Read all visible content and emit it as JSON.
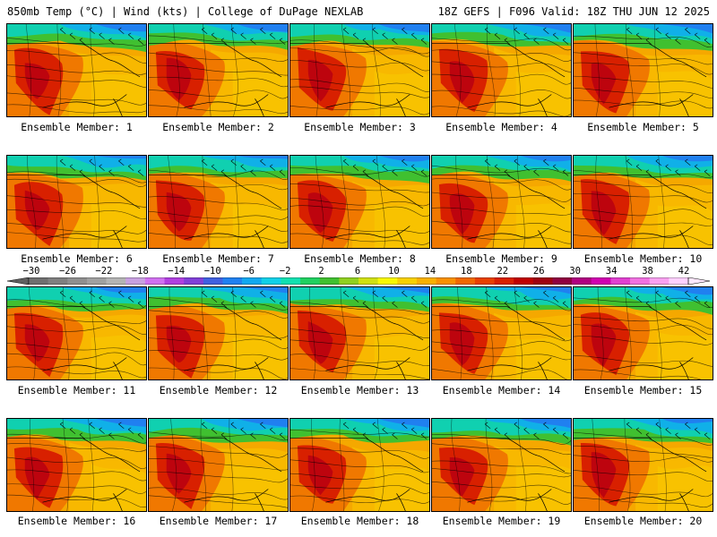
{
  "header": {
    "left": "850mb Temp (°C) | Wind (kts) | College of DuPage NEXLAB",
    "right": "18Z GEFS | F096 Valid: 18Z THU JUN 12 2025"
  },
  "panels": [
    {
      "caption": "Ensemble Member: 1"
    },
    {
      "caption": "Ensemble Member: 2"
    },
    {
      "caption": "Ensemble Member: 3"
    },
    {
      "caption": "Ensemble Member: 4"
    },
    {
      "caption": "Ensemble Member: 5"
    },
    {
      "caption": "Ensemble Member: 6"
    },
    {
      "caption": "Ensemble Member: 7"
    },
    {
      "caption": "Ensemble Member: 8"
    },
    {
      "caption": "Ensemble Member: 9"
    },
    {
      "caption": "Ensemble Member: 10"
    },
    {
      "caption": "Ensemble Member: 11"
    },
    {
      "caption": "Ensemble Member: 12"
    },
    {
      "caption": "Ensemble Member: 13"
    },
    {
      "caption": "Ensemble Member: 14"
    },
    {
      "caption": "Ensemble Member: 15"
    },
    {
      "caption": "Ensemble Member: 16"
    },
    {
      "caption": "Ensemble Member: 17"
    },
    {
      "caption": "Ensemble Member: 18"
    },
    {
      "caption": "Ensemble Member: 19"
    },
    {
      "caption": "Ensemble Member: 20"
    }
  ],
  "colorbar": {
    "labels": [
      "−30",
      "−26",
      "−22",
      "−18",
      "−14",
      "−10",
      "−6",
      "−2",
      "2",
      "6",
      "10",
      "14",
      "18",
      "22",
      "26",
      "30",
      "34",
      "38",
      "42"
    ],
    "colors": [
      "#6f6f6f",
      "#7f7f7f",
      "#8f8f8f",
      "#a0a0a0",
      "#b4b4b4",
      "#c8a0e0",
      "#d070f0",
      "#b040e0",
      "#8040d8",
      "#4060e0",
      "#2080f0",
      "#10a8f0",
      "#10d0e8",
      "#10e0b0",
      "#20d060",
      "#40c030",
      "#90d020",
      "#d0e010",
      "#f8f800",
      "#f8d000",
      "#f8b000",
      "#f89000",
      "#f06800",
      "#e84000",
      "#d82000",
      "#c00000",
      "#a00010",
      "#900040",
      "#b00080",
      "#d000b0",
      "#e040d0",
      "#f070e0",
      "#f8a0f0",
      "#ffd0ff"
    ]
  }
}
